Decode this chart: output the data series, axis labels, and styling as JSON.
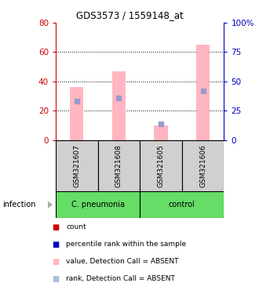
{
  "title": "GDS3573 / 1559148_at",
  "samples": [
    "GSM321607",
    "GSM321608",
    "GSM321605",
    "GSM321606"
  ],
  "pink_bars": [
    36,
    47,
    10,
    65
  ],
  "blue_squares": [
    33,
    36,
    14,
    42
  ],
  "ylim_left": [
    0,
    80
  ],
  "ylim_right": [
    0,
    100
  ],
  "yticks_left": [
    0,
    20,
    40,
    60,
    80
  ],
  "ytick_labels_left": [
    "0",
    "20",
    "40",
    "60",
    "80"
  ],
  "yticks_right": [
    0,
    25,
    50,
    75,
    100
  ],
  "ytick_labels_right": [
    "0",
    "25",
    "50",
    "75",
    "100%"
  ],
  "left_axis_color": "#cc0000",
  "right_axis_color": "#0000bb",
  "pink_color": "#FFB6C1",
  "blue_sq_color": "#9999cc",
  "red_color": "#cc0000",
  "blue_color": "#0000bb",
  "gray_color": "#d0d0d0",
  "green_color": "#66dd66",
  "group1_label": "C. pneumonia",
  "group2_label": "control",
  "infection_label": "infection",
  "legend": [
    {
      "color": "#cc0000",
      "label": "count"
    },
    {
      "color": "#0000bb",
      "label": "percentile rank within the sample"
    },
    {
      "color": "#FFB6C1",
      "label": "value, Detection Call = ABSENT"
    },
    {
      "color": "#aabbdd",
      "label": "rank, Detection Call = ABSENT"
    }
  ]
}
